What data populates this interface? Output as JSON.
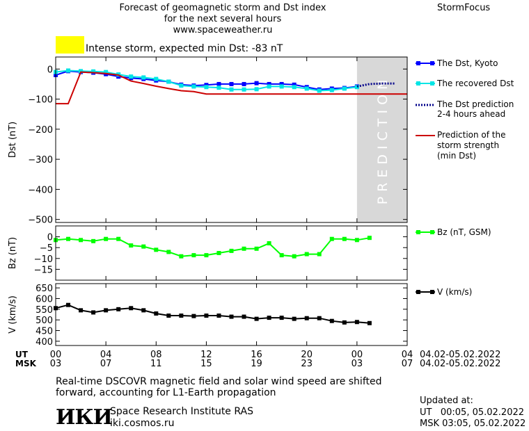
{
  "header": {
    "title_line1": "Forecast of geomagnetic storm and Dst index",
    "title_line2": "for the next several hours",
    "url": "www.spaceweather.ru",
    "brand": "StormFocus"
  },
  "alert": {
    "text": "Intense storm, expected min Dst: -83 nT",
    "color": "#ffff00"
  },
  "prediction_zone_text": "PREDICTION",
  "legend": {
    "dst_kyoto": "The Dst, Kyoto",
    "dst_recovered": "The recovered Dst",
    "dst_prediction_line1": "The Dst prediction",
    "dst_prediction_line2": "2-4 hours ahead",
    "storm_line1": "Prediction of the",
    "storm_line2": "storm strength",
    "storm_line3": "(min Dst)",
    "bz": "Bz (nT, GSM)",
    "v": "V (km/s)"
  },
  "time_axis": {
    "ut_label": "UT",
    "msk_label": "MSK",
    "ut_ticks": [
      "00",
      "04",
      "08",
      "12",
      "16",
      "20",
      "00",
      "04"
    ],
    "msk_ticks": [
      "03",
      "07",
      "11",
      "15",
      "19",
      "23",
      "03",
      "07"
    ],
    "ut_range": "04.02-05.02.2022",
    "msk_range": "04.02-05.02.2022"
  },
  "footer": {
    "note_line1": "Real-time DSCOVR magnetic field and solar wind speed are shifted",
    "note_line2": "forward, accounting for L1-Earth propagation",
    "logo": "ИКИ",
    "institute": "Space Research Institute RAS",
    "site": "iki.cosmos.ru",
    "updated_label": "Updated at:",
    "updated_ut": "UT   00:05, 05.02.2022",
    "updated_msk": "MSK 03:05, 05.02.2022"
  },
  "chart_data": [
    {
      "type": "line",
      "panel": "dst",
      "ylabel": "Dst (nT)",
      "ylim": [
        -510,
        40
      ],
      "yticks": [
        0,
        -100,
        -200,
        -300,
        -400,
        -500
      ],
      "xlim": [
        0,
        28
      ],
      "prediction_zone": [
        24,
        28
      ],
      "series": [
        {
          "name": "The Dst, Kyoto",
          "color": "#0000ff",
          "x": [
            0,
            1,
            2,
            3,
            4,
            5,
            6,
            7,
            8,
            9,
            10,
            11,
            12,
            13,
            14,
            15,
            16,
            17,
            18,
            19,
            20,
            21,
            22,
            23,
            24
          ],
          "values": [
            -20,
            -7,
            -10,
            -12,
            -17,
            -25,
            -30,
            -33,
            -38,
            -42,
            -52,
            -55,
            -53,
            -50,
            -50,
            -50,
            -47,
            -50,
            -50,
            -52,
            -60,
            -68,
            -65,
            -63,
            -58
          ]
        },
        {
          "name": "The recovered Dst",
          "color": "#00e5e5",
          "x": [
            0,
            1,
            2,
            3,
            4,
            5,
            6,
            7,
            8,
            9,
            10,
            11,
            12,
            13,
            14,
            15,
            16,
            17,
            18,
            19,
            20,
            21,
            22,
            23,
            24
          ],
          "values": [
            -10,
            -5,
            -7,
            -8,
            -10,
            -18,
            -25,
            -28,
            -33,
            -42,
            -55,
            -58,
            -60,
            -62,
            -68,
            -68,
            -67,
            -58,
            -58,
            -60,
            -65,
            -72,
            -70,
            -65,
            -60
          ]
        },
        {
          "name": "The Dst prediction 2-4 hours ahead",
          "color": "#00008b",
          "x": [
            24,
            25,
            26,
            27
          ],
          "values": [
            -58,
            -50,
            -48,
            -48
          ]
        },
        {
          "name": "Prediction of the storm strength (min Dst)",
          "color": "#cc0000",
          "x": [
            -1,
            0,
            1,
            2,
            3,
            4,
            5,
            6,
            7,
            8,
            9,
            10,
            11,
            12,
            13,
            14,
            15,
            16,
            17,
            18,
            19,
            20,
            21,
            22,
            23,
            24,
            25,
            26,
            27,
            28
          ],
          "values": [
            -115,
            -115,
            -115,
            -10,
            -12,
            -15,
            -20,
            -40,
            -48,
            -57,
            -65,
            -72,
            -75,
            -83,
            -83,
            -83,
            -83,
            -83,
            -83,
            -83,
            -83,
            -83,
            -83,
            -83,
            -83,
            -83,
            -83,
            -83,
            -83,
            -83
          ]
        }
      ]
    },
    {
      "type": "line",
      "panel": "bz",
      "ylabel": "Bz (nT)",
      "ylim": [
        -20,
        5
      ],
      "yticks": [
        0,
        -5,
        -10,
        -15
      ],
      "xlim": [
        0,
        28
      ],
      "series": [
        {
          "name": "Bz (nT, GSM)",
          "color": "#00ff00",
          "x": [
            0,
            1,
            2,
            3,
            4,
            5,
            6,
            7,
            8,
            9,
            10,
            11,
            12,
            13,
            14,
            15,
            16,
            17,
            18,
            19,
            20,
            21,
            22,
            23,
            24,
            25
          ],
          "values": [
            -1.5,
            -1,
            -1.5,
            -2,
            -1,
            -1,
            -4,
            -4.5,
            -6,
            -7,
            -9,
            -8.5,
            -8.5,
            -7.5,
            -6.5,
            -5.5,
            -5.5,
            -3,
            -8.5,
            -9,
            -8,
            -8,
            -1,
            -1,
            -1.5,
            -0.5
          ]
        }
      ]
    },
    {
      "type": "line",
      "panel": "v",
      "ylabel": "V (km/s)",
      "ylim": [
        380,
        670
      ],
      "yticks": [
        650,
        600,
        550,
        500,
        450,
        400
      ],
      "xlim": [
        0,
        28
      ],
      "series": [
        {
          "name": "V (km/s)",
          "color": "#000000",
          "x": [
            0,
            1,
            2,
            3,
            4,
            5,
            6,
            7,
            8,
            9,
            10,
            11,
            12,
            13,
            14,
            15,
            16,
            17,
            18,
            19,
            20,
            21,
            22,
            23,
            24,
            25
          ],
          "values": [
            555,
            570,
            545,
            535,
            545,
            550,
            555,
            545,
            530,
            520,
            520,
            518,
            520,
            520,
            515,
            515,
            505,
            510,
            510,
            505,
            508,
            508,
            495,
            488,
            490,
            485
          ]
        }
      ]
    }
  ]
}
